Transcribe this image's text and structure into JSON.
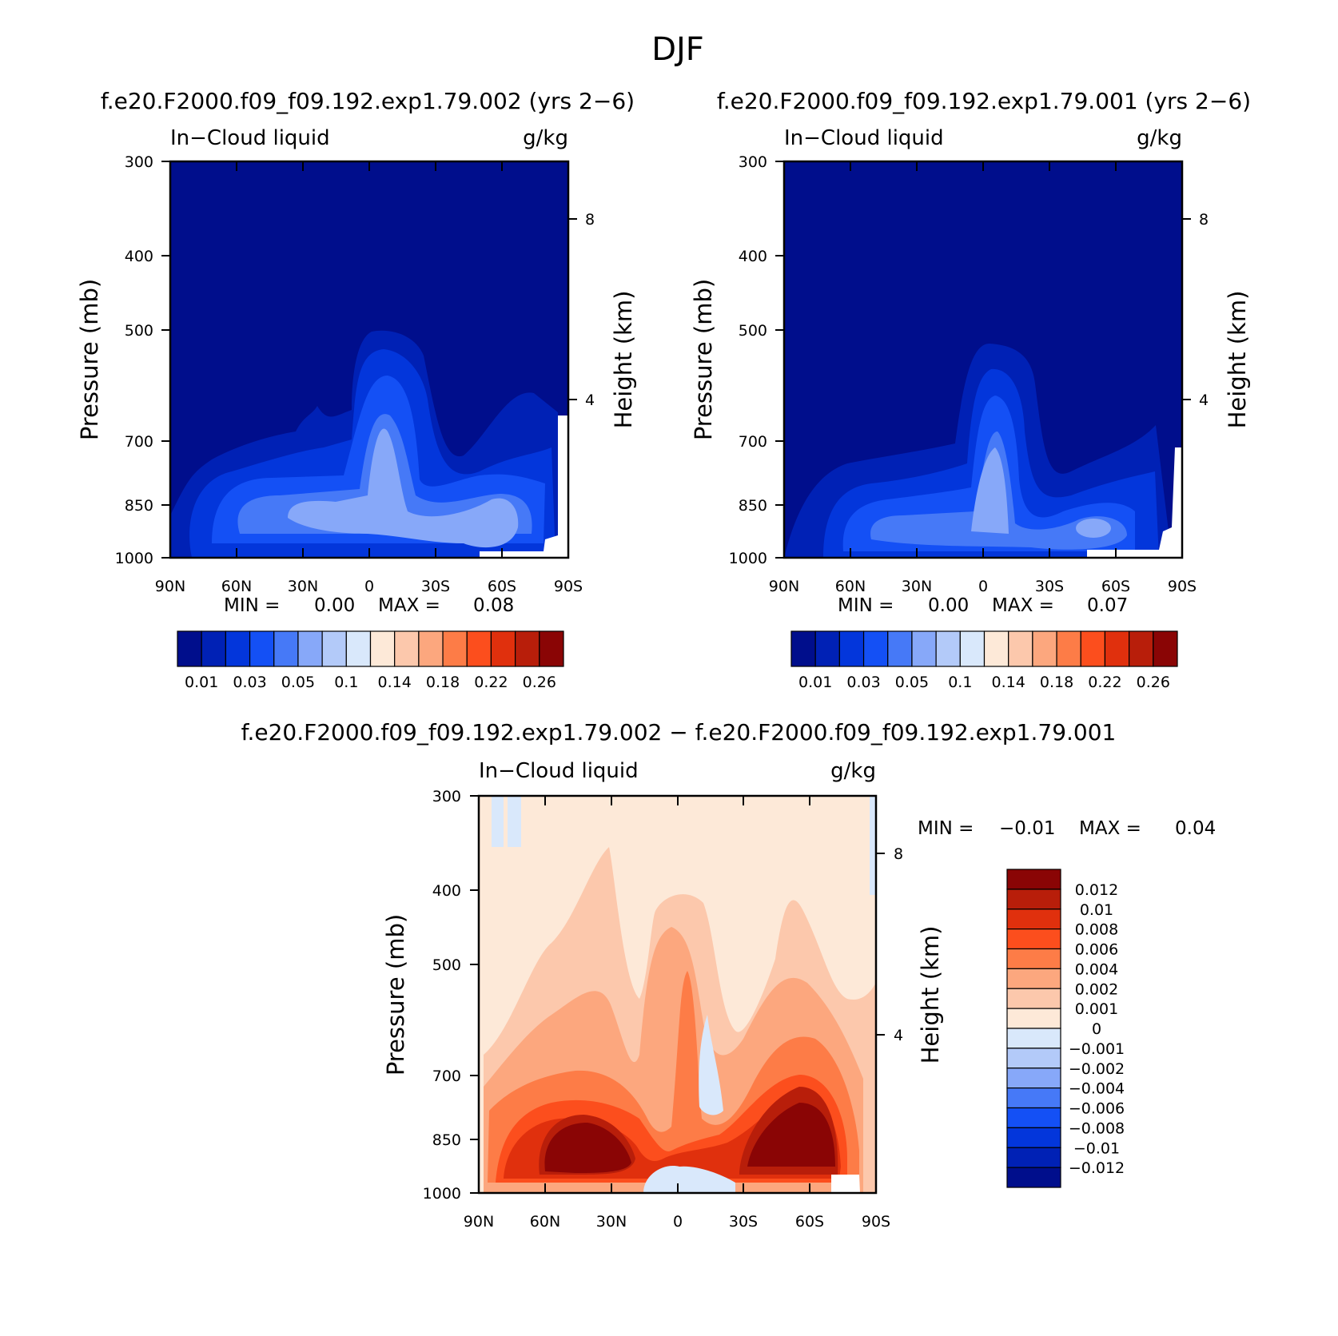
{
  "title": "DJF",
  "colors": {
    "blues": [
      "#000e8c",
      "#0021b5",
      "#0336db",
      "#1450f5",
      "#4679f7",
      "#87a8f9",
      "#b3caf9",
      "#d9e8fb"
    ],
    "reds": [
      "#fde9d8",
      "#fcc8ac",
      "#fca77e",
      "#fd7c47",
      "#fc4e1d",
      "#e0300d",
      "#b81e0a",
      "#8a0505"
    ],
    "mask": "#ffffff"
  },
  "chart_data": [
    {
      "type": "heatmap",
      "id": "p1",
      "title": "f.e20.F2000.f09_f09.192.exp1.79.002 (yrs 2−6)",
      "left_label": "In−Cloud liquid",
      "right_label": "g/kg",
      "ylabel": "Pressure (mb)",
      "y2label": "Height (km)",
      "xticks": [
        "90N",
        "60N",
        "30N",
        "0",
        "30S",
        "60S",
        "90S"
      ],
      "yticks": [
        "300",
        "400",
        "500",
        "700",
        "850",
        "1000"
      ],
      "y2ticks": [
        "8",
        "4"
      ],
      "stats": {
        "min_label": "MIN =",
        "min": "0.00",
        "max_label": "MAX =",
        "max": "0.08"
      },
      "colorbar_labels": [
        "0.01",
        "0.03",
        "0.05",
        "0.1",
        "0.14",
        "0.18",
        "0.22",
        "0.26"
      ],
      "pressure_range": [
        1000,
        300
      ],
      "latitude_range": [
        90,
        -90
      ]
    },
    {
      "type": "heatmap",
      "id": "p2",
      "title": "f.e20.F2000.f09_f09.192.exp1.79.001 (yrs 2−6)",
      "left_label": "In−Cloud liquid",
      "right_label": "g/kg",
      "ylabel": "Pressure (mb)",
      "y2label": "Height (km)",
      "xticks": [
        "90N",
        "60N",
        "30N",
        "0",
        "30S",
        "60S",
        "90S"
      ],
      "yticks": [
        "300",
        "400",
        "500",
        "700",
        "850",
        "1000"
      ],
      "y2ticks": [
        "8",
        "4"
      ],
      "stats": {
        "min_label": "MIN =",
        "min": "0.00",
        "max_label": "MAX =",
        "max": "0.07"
      },
      "colorbar_labels": [
        "0.01",
        "0.03",
        "0.05",
        "0.1",
        "0.14",
        "0.18",
        "0.22",
        "0.26"
      ],
      "pressure_range": [
        1000,
        300
      ],
      "latitude_range": [
        90,
        -90
      ]
    },
    {
      "type": "heatmap",
      "id": "p3",
      "title": "f.e20.F2000.f09_f09.192.exp1.79.002 − f.e20.F2000.f09_f09.192.exp1.79.001",
      "left_label": "In−Cloud liquid",
      "right_label": "g/kg",
      "ylabel": "Pressure (mb)",
      "y2label": "Height (km)",
      "xticks": [
        "90N",
        "60N",
        "30N",
        "0",
        "30S",
        "60S",
        "90S"
      ],
      "yticks": [
        "300",
        "400",
        "500",
        "700",
        "850",
        "1000"
      ],
      "y2ticks": [
        "8",
        "4"
      ],
      "stats": {
        "min_label": "MIN =",
        "min": "−0.01",
        "max_label": "MAX =",
        "max": "0.04"
      },
      "colorbar_labels": [
        "0.012",
        "0.01",
        "0.008",
        "0.006",
        "0.004",
        "0.002",
        "0.001",
        "0",
        "−0.001",
        "−0.002",
        "−0.004",
        "−0.006",
        "−0.008",
        "−0.01",
        "−0.012"
      ],
      "pressure_range": [
        1000,
        300
      ],
      "latitude_range": [
        90,
        -90
      ]
    }
  ]
}
